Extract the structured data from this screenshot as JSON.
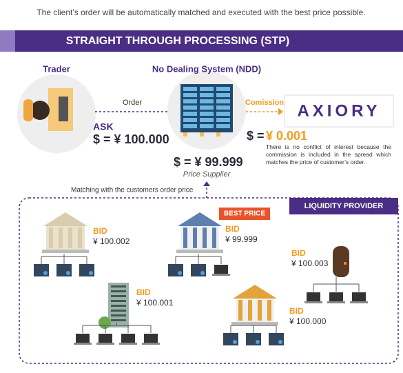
{
  "header": {
    "subtitle": "The client’s order will be automatically matched and executed with the best price possible.",
    "title": "STRAIGHT THROUGH PROCESSING (STP)"
  },
  "flow": {
    "trader": {
      "label": "Trader",
      "side": "ASK",
      "price": "$ = ¥ 100.000"
    },
    "order_label": "Order",
    "ndd": {
      "label": "No Dealing System (NDD)",
      "price": "$ = ¥ 99.999",
      "role": "Price Supplier"
    },
    "commission_label": "Comission",
    "broker": {
      "name": "AXIORY",
      "prefix": "$ =",
      "commission": "¥ 0.001",
      "note": "There is no conflict of interest because the commission is included in the spread which matches the price of customer’s order."
    }
  },
  "matching_label": "Matching with the customers order price",
  "liquidity": {
    "title": "LIQUIDITY PROVIDER",
    "best_price": "BEST PRICE",
    "providers": [
      {
        "side": "BID",
        "price": "¥ 100.002"
      },
      {
        "side": "BID",
        "price": "¥ 99.999"
      },
      {
        "side": "BID",
        "price": "¥ 100.003"
      },
      {
        "side": "BID",
        "price": "¥ 100.001"
      },
      {
        "side": "BID",
        "price": "¥ 100.000"
      }
    ]
  }
}
